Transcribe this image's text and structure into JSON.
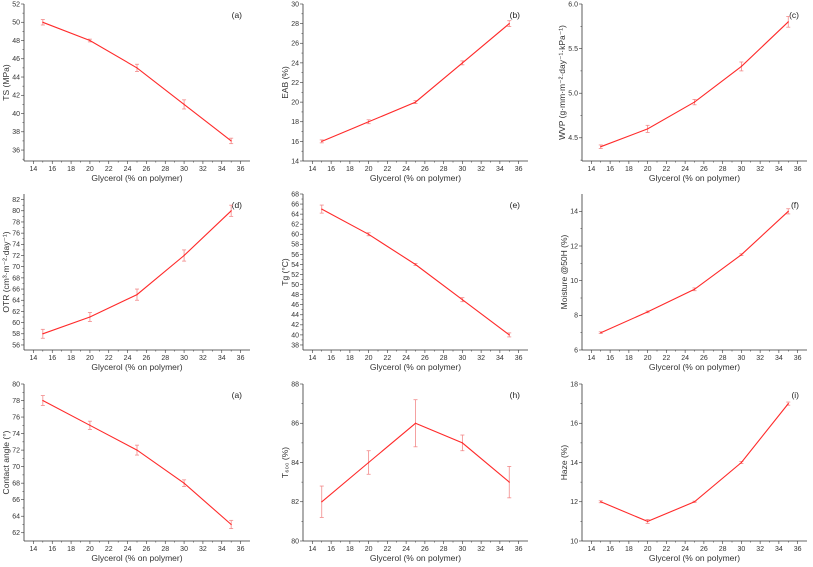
{
  "chart_data": [
    {
      "id": "a",
      "type": "line",
      "panel_label": "(a)",
      "xlabel": "Glycerol (% on polymer)",
      "ylabel": "TS (MPa)",
      "x": [
        15,
        20,
        25,
        30,
        35
      ],
      "values": [
        50,
        48,
        45,
        41,
        37
      ],
      "errors": [
        0.3,
        0.15,
        0.4,
        0.5,
        0.3
      ],
      "xlim": [
        13,
        37
      ],
      "ylim": [
        34.8,
        52
      ],
      "yticks": [
        36,
        38,
        40,
        42,
        44,
        46,
        48,
        50,
        52
      ],
      "ydecimals": 0
    },
    {
      "id": "b",
      "type": "line",
      "panel_label": "(b)",
      "xlabel": "Glycerol (% on polymer)",
      "ylabel": "EAB (%)",
      "x": [
        15,
        20,
        25,
        30,
        35
      ],
      "values": [
        16,
        18,
        20,
        24,
        28
      ],
      "errors": [
        0.15,
        0.2,
        0.15,
        0.2,
        0.3
      ],
      "xlim": [
        13,
        37
      ],
      "ylim": [
        14,
        30
      ],
      "yticks": [
        14,
        16,
        18,
        20,
        22,
        24,
        26,
        28,
        30
      ],
      "ydecimals": 0
    },
    {
      "id": "c",
      "type": "line",
      "panel_label": "(c)",
      "xlabel": "Glycerol (% on polymer)",
      "ylabel": "WVP (g·mm·m⁻²·day⁻¹·kPa⁻¹)",
      "x": [
        15,
        20,
        25,
        30,
        35
      ],
      "values": [
        4.4,
        4.6,
        4.9,
        5.3,
        5.8
      ],
      "errors": [
        0.02,
        0.04,
        0.03,
        0.05,
        0.06
      ],
      "xlim": [
        13,
        37
      ],
      "ylim": [
        4.24,
        6.0
      ],
      "yticks": [
        4.5,
        5.0,
        5.5,
        6.0
      ],
      "ydecimals": 1
    },
    {
      "id": "d",
      "type": "line",
      "panel_label": "(d)",
      "xlabel": "Glycerol (% on polymer)",
      "ylabel": "OTR (cm³·m⁻²·day⁻¹)",
      "x": [
        15,
        20,
        25,
        30,
        35
      ],
      "values": [
        58,
        61,
        65,
        72,
        80
      ],
      "errors": [
        0.8,
        0.8,
        1,
        1,
        1
      ],
      "xlim": [
        13,
        37
      ],
      "ylim": [
        55.1,
        83
      ],
      "yticks": [
        56,
        58,
        60,
        62,
        64,
        66,
        68,
        70,
        72,
        74,
        76,
        78,
        80,
        82
      ],
      "ydecimals": 0
    },
    {
      "id": "e",
      "type": "line",
      "panel_label": "(e)",
      "xlabel": "Glycerol (% on polymer)",
      "ylabel": "Tg (°C)",
      "x": [
        15,
        20,
        25,
        30,
        35
      ],
      "values": [
        65,
        60,
        54,
        47,
        40
      ],
      "errors": [
        0.8,
        0.3,
        0.2,
        0.4,
        0.4
      ],
      "xlim": [
        13,
        37
      ],
      "ylim": [
        37,
        68
      ],
      "yticks": [
        38,
        40,
        42,
        44,
        46,
        48,
        50,
        52,
        54,
        56,
        58,
        60,
        62,
        64,
        66,
        68
      ],
      "ydecimals": 0
    },
    {
      "id": "f",
      "type": "line",
      "panel_label": "(f)",
      "xlabel": "Glycerol (% on polymer)",
      "ylabel": "Moisture @50H (%)",
      "x": [
        15,
        20,
        25,
        30,
        35
      ],
      "values": [
        7,
        8.2,
        9.5,
        11.5,
        14
      ],
      "errors": [
        0.05,
        0.05,
        0.08,
        0.05,
        0.15
      ],
      "xlim": [
        13,
        37
      ],
      "ylim": [
        6,
        15
      ],
      "yticks": [
        6,
        8,
        10,
        12,
        14
      ],
      "ydecimals": 0
    },
    {
      "id": "g",
      "type": "line",
      "panel_label": "(a)",
      "xlabel": "Glycerol (% on polymer)",
      "ylabel": "Contact angle (°)",
      "x": [
        15,
        20,
        25,
        30,
        35
      ],
      "values": [
        78,
        75,
        72,
        68,
        63
      ],
      "errors": [
        0.6,
        0.5,
        0.6,
        0.4,
        0.5
      ],
      "xlim": [
        13,
        37
      ],
      "ylim": [
        61,
        80
      ],
      "yticks": [
        62,
        64,
        66,
        68,
        70,
        72,
        74,
        76,
        78,
        80
      ],
      "ydecimals": 0
    },
    {
      "id": "h",
      "type": "line",
      "panel_label": "(h)",
      "xlabel": "Glycerol (% on polymer)",
      "ylabel": "T₆₀₀ (%)",
      "x": [
        15,
        20,
        25,
        30,
        35
      ],
      "values": [
        82,
        84,
        86,
        85,
        83
      ],
      "errors": [
        0.8,
        0.6,
        1.2,
        0.4,
        0.8
      ],
      "xlim": [
        13,
        37
      ],
      "ylim": [
        80,
        88
      ],
      "yticks": [
        80,
        82,
        84,
        86,
        88
      ],
      "ydecimals": 0
    },
    {
      "id": "i",
      "type": "line",
      "panel_label": "(i)",
      "xlabel": "Glycerol (% on polymer)",
      "ylabel": "Haze (%)",
      "x": [
        15,
        20,
        25,
        30,
        35
      ],
      "values": [
        12,
        11,
        12,
        14,
        17
      ],
      "errors": [
        0.05,
        0.1,
        0.03,
        0.05,
        0.08
      ],
      "xlim": [
        13,
        37
      ],
      "ylim": [
        10,
        18
      ],
      "yticks": [
        10,
        12,
        14,
        16,
        18
      ],
      "ydecimals": 0
    }
  ],
  "xticks": [
    14,
    16,
    18,
    20,
    22,
    24,
    26,
    28,
    30,
    32,
    34,
    36
  ],
  "colors": {
    "line": "#ff2a2a",
    "errorbar": "#f28a8a",
    "axis": "#333333"
  }
}
